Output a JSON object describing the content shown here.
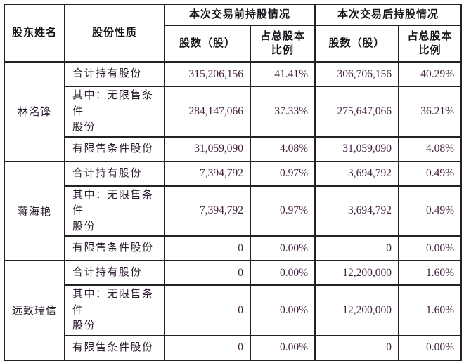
{
  "page": {
    "background": "#ffffff",
    "border_color": "#242024",
    "header_text_color": "#161218",
    "body_text_color": "#2b1b2e",
    "number_color": "#44203f"
  },
  "table": {
    "headers": {
      "shareholder": "股东姓名",
      "nature": "股份性质",
      "before_group": "本次交易前持股情况",
      "after_group": "本次交易后持股情况",
      "shares": "股数（股）",
      "ratio": "占总股本\n比例"
    },
    "sections": [
      {
        "name": "林洺锋",
        "rows": [
          {
            "label": "合计持有股份",
            "before_shares": "315,206,156",
            "before_ratio": "41.41%",
            "after_shares": "306,706,156",
            "after_ratio": "40.29%"
          },
          {
            "label": "其中：无限售条件\n股份",
            "before_shares": "284,147,066",
            "before_ratio": "37.33%",
            "after_shares": "275,647,066",
            "after_ratio": "36.21%"
          },
          {
            "label": "有限售条件股份",
            "before_shares": "31,059,090",
            "before_ratio": "4.08%",
            "after_shares": "31,059,090",
            "after_ratio": "4.08%"
          }
        ]
      },
      {
        "name": "蒋海艳",
        "rows": [
          {
            "label": "合计持有股份",
            "before_shares": "7,394,792",
            "before_ratio": "0.97%",
            "after_shares": "3,694,792",
            "after_ratio": "0.49%"
          },
          {
            "label": "其中：无限售条件\n股份",
            "before_shares": "7,394,792",
            "before_ratio": "0.97%",
            "after_shares": "3,694,792",
            "after_ratio": "0.49%"
          },
          {
            "label": "有限售条件股份",
            "before_shares": "0",
            "before_ratio": "0.00%",
            "after_shares": "0",
            "after_ratio": "0.00%"
          }
        ]
      },
      {
        "name": "远致瑞信",
        "rows": [
          {
            "label": "合计持有股份",
            "before_shares": "0",
            "before_ratio": "0.00%",
            "after_shares": "12,200,000",
            "after_ratio": "1.60%"
          },
          {
            "label": "其中：无限售条件\n股份",
            "before_shares": "0",
            "before_ratio": "0.00%",
            "after_shares": "12,200,000",
            "after_ratio": "1.60%"
          },
          {
            "label": "有限售条件股份",
            "before_shares": "0",
            "before_ratio": "0.00%",
            "after_shares": "0",
            "after_ratio": "0.00%"
          }
        ]
      }
    ]
  }
}
